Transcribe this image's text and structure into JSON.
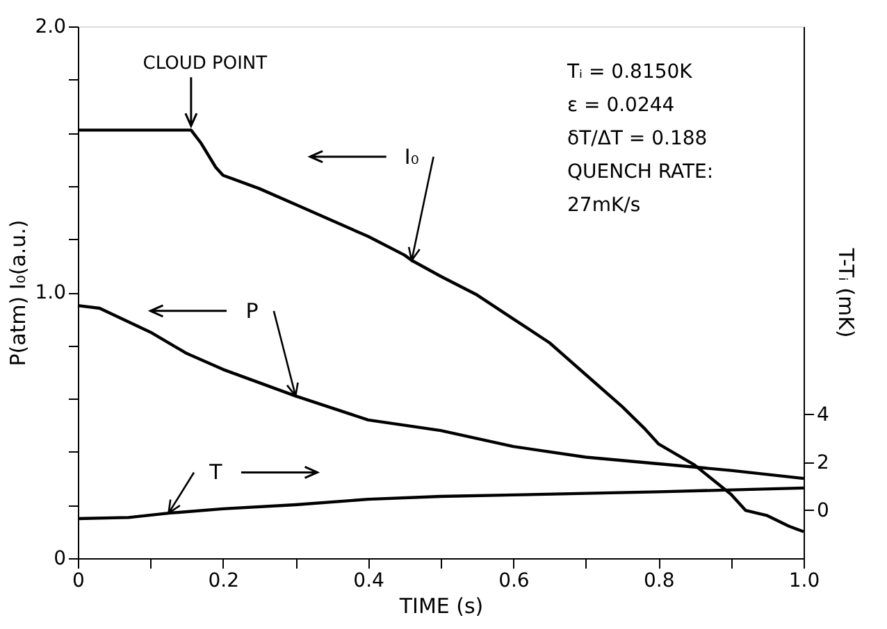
{
  "chart_data": {
    "type": "line",
    "xlabel": "TIME (s)",
    "ylabel": "P(atm) I₀(a.u.)",
    "y2label": "T-Tᵢ (mK)",
    "xlim": [
      0,
      1.0
    ],
    "xticks": [
      0,
      {
        "value": 0.1,
        "label": null
      },
      0.2,
      {
        "value": 0.3,
        "label": null
      },
      0.4,
      {
        "value": 0.5,
        "label": null
      },
      0.6,
      {
        "value": 0.7,
        "label": null
      },
      0.8,
      {
        "value": 0.9,
        "label": null
      },
      {
        "value": 1.0,
        "label": "1.0"
      }
    ],
    "ylim": [
      0,
      2.0
    ],
    "yticks": [
      0,
      {
        "value": 0.2,
        "label": null
      },
      {
        "value": 0.4,
        "label": null
      },
      {
        "value": 0.6,
        "label": null
      },
      {
        "value": 0.8,
        "label": null
      },
      {
        "value": 1.0,
        "label": "1.0"
      },
      {
        "value": 1.2,
        "label": null
      },
      {
        "value": 1.4,
        "label": null
      },
      {
        "value": 1.6,
        "label": null
      },
      {
        "value": 1.8,
        "label": null
      },
      {
        "value": 2.0,
        "label": "2.0"
      }
    ],
    "y2lim": [
      -2,
      20.2
    ],
    "y2ticks": [
      0,
      2,
      4
    ],
    "grid": false,
    "legend": "top left",
    "line_style": "solid",
    "series": [
      {
        "name": "I₀",
        "color": "#000000",
        "x": [
          0,
          0.156,
          0.17,
          0.19,
          0.2,
          0.25,
          0.3,
          0.35,
          0.4,
          0.45,
          0.46,
          0.5,
          0.55,
          0.6,
          0.65,
          0.7,
          0.75,
          0.78,
          0.8,
          0.85,
          0.9,
          0.92,
          0.95,
          0.98,
          1.0
        ],
        "values": [
          1.61,
          1.61,
          1.56,
          1.47,
          1.44,
          1.39,
          1.33,
          1.27,
          1.21,
          1.14,
          1.12,
          1.06,
          0.99,
          0.9,
          0.81,
          0.69,
          0.57,
          0.49,
          0.43,
          0.35,
          0.24,
          0.18,
          0.16,
          0.12,
          0.1
        ]
      },
      {
        "name": "P",
        "color": "#000000",
        "x": [
          0,
          0.03,
          0.1,
          0.15,
          0.2,
          0.3,
          0.4,
          0.5,
          0.6,
          0.7,
          0.8,
          0.9,
          1.0
        ],
        "values": [
          0.95,
          0.94,
          0.85,
          0.77,
          0.71,
          0.61,
          0.52,
          0.48,
          0.42,
          0.38,
          0.355,
          0.33,
          0.3
        ]
      },
      {
        "name": "T",
        "color": "#000000",
        "axis": "y2",
        "x": [
          0,
          0.07,
          0.125,
          0.2,
          0.3,
          0.4,
          0.5,
          0.6,
          0.8,
          1.0
        ],
        "values": [
          -0.35,
          -0.3,
          -0.12,
          0.06,
          0.23,
          0.46,
          0.58,
          0.64,
          0.77,
          0.93
        ]
      }
    ],
    "annotations": [
      {
        "text": "CLOUD POINT",
        "x": 0.156,
        "y": 1.61
      },
      "Tᵢ = 0.8150K",
      "ε = 0.0244",
      "δT/ΔT = 0.188",
      "QUENCH RATE:",
      "27mK/s"
    ]
  }
}
